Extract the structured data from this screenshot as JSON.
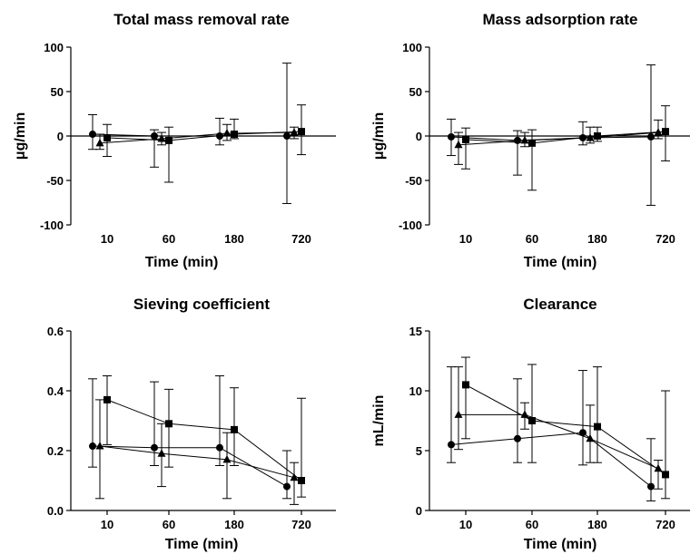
{
  "chart_data": [
    {
      "type": "scatter",
      "title": "Total mass removal rate",
      "xlabel": "Time (min)",
      "ylabel": "μg/min",
      "categories": [
        "10",
        "60",
        "180",
        "720"
      ],
      "ylim": [
        -100,
        100
      ],
      "yticks": [
        "100",
        "50",
        "0",
        "-50",
        "-100"
      ],
      "zero_line": true,
      "legend": "none",
      "series": [
        {
          "marker": "circle",
          "values": [
            2,
            0,
            0,
            0
          ],
          "err_low": [
            -15,
            -35,
            -10,
            -76
          ],
          "err_high": [
            24,
            7,
            20,
            82
          ]
        },
        {
          "marker": "triangle",
          "values": [
            -8,
            -3,
            3,
            4
          ],
          "err_low": [
            -15,
            -10,
            -5,
            -3
          ],
          "err_high": [
            2,
            4,
            13,
            10
          ]
        },
        {
          "marker": "square",
          "values": [
            -2,
            -5,
            2,
            5
          ],
          "err_low": [
            -23,
            -52,
            -3,
            -21
          ],
          "err_high": [
            13,
            10,
            19,
            35
          ]
        }
      ]
    },
    {
      "type": "scatter",
      "title": "Mass adsorption rate",
      "xlabel": "Time (min)",
      "ylabel": "μg/min",
      "categories": [
        "10",
        "60",
        "180",
        "720"
      ],
      "ylim": [
        -100,
        100
      ],
      "yticks": [
        "100",
        "50",
        "0",
        "-50",
        "-100"
      ],
      "zero_line": true,
      "legend": "none",
      "series": [
        {
          "marker": "circle",
          "values": [
            -1,
            -5,
            -2,
            -1
          ],
          "err_low": [
            -22,
            -44,
            -10,
            -78
          ],
          "err_high": [
            19,
            6,
            16,
            80
          ]
        },
        {
          "marker": "triangle",
          "values": [
            -10,
            -5,
            -2,
            4
          ],
          "err_low": [
            -32,
            -12,
            -8,
            -3
          ],
          "err_high": [
            4,
            4,
            10,
            18
          ]
        },
        {
          "marker": "square",
          "values": [
            -4,
            -8,
            0,
            5
          ],
          "err_low": [
            -37,
            -61,
            -6,
            -28
          ],
          "err_high": [
            9,
            7,
            10,
            34
          ]
        }
      ]
    },
    {
      "type": "scatter",
      "title": "Sieving coefficient",
      "xlabel": "Time (min)",
      "ylabel": "",
      "categories": [
        "10",
        "60",
        "180",
        "720"
      ],
      "ylim": [
        0,
        0.6
      ],
      "yticks": [
        "0.6",
        "0.4",
        "0.2",
        "0.0"
      ],
      "zero_line": false,
      "legend": "none",
      "series": [
        {
          "marker": "circle",
          "values": [
            0.215,
            0.21,
            0.21,
            0.08
          ],
          "err_low": [
            0.145,
            0.15,
            0.15,
            0.04
          ],
          "err_high": [
            0.44,
            0.43,
            0.45,
            0.2
          ]
        },
        {
          "marker": "triangle",
          "values": [
            0.215,
            0.19,
            0.17,
            0.11
          ],
          "err_low": [
            0.04,
            0.08,
            0.04,
            0.02
          ],
          "err_high": [
            0.37,
            0.29,
            0.26,
            0.16
          ]
        },
        {
          "marker": "square",
          "values": [
            0.37,
            0.29,
            0.27,
            0.1
          ],
          "err_low": [
            0.22,
            0.145,
            0.15,
            0.045
          ],
          "err_high": [
            0.45,
            0.405,
            0.41,
            0.375
          ]
        }
      ]
    },
    {
      "type": "scatter",
      "title": "Clearance",
      "xlabel": "Time (min)",
      "ylabel": "mL/min",
      "categories": [
        "10",
        "60",
        "180",
        "720"
      ],
      "ylim": [
        0,
        15
      ],
      "yticks": [
        "15",
        "10",
        "5",
        "0"
      ],
      "zero_line": false,
      "legend": "none",
      "series": [
        {
          "marker": "circle",
          "values": [
            5.5,
            6,
            6.5,
            2
          ],
          "err_low": [
            4,
            4,
            3.8,
            0.8
          ],
          "err_high": [
            12,
            11,
            11.7,
            6
          ]
        },
        {
          "marker": "triangle",
          "values": [
            8,
            8,
            6,
            3.5
          ],
          "err_low": [
            5.1,
            6.8,
            4,
            1.8
          ],
          "err_high": [
            12,
            9,
            8.8,
            4.2
          ]
        },
        {
          "marker": "square",
          "values": [
            10.5,
            7.5,
            7,
            3
          ],
          "err_low": [
            6,
            4,
            4,
            1
          ],
          "err_high": [
            12.8,
            12.2,
            12,
            10
          ]
        }
      ]
    }
  ]
}
